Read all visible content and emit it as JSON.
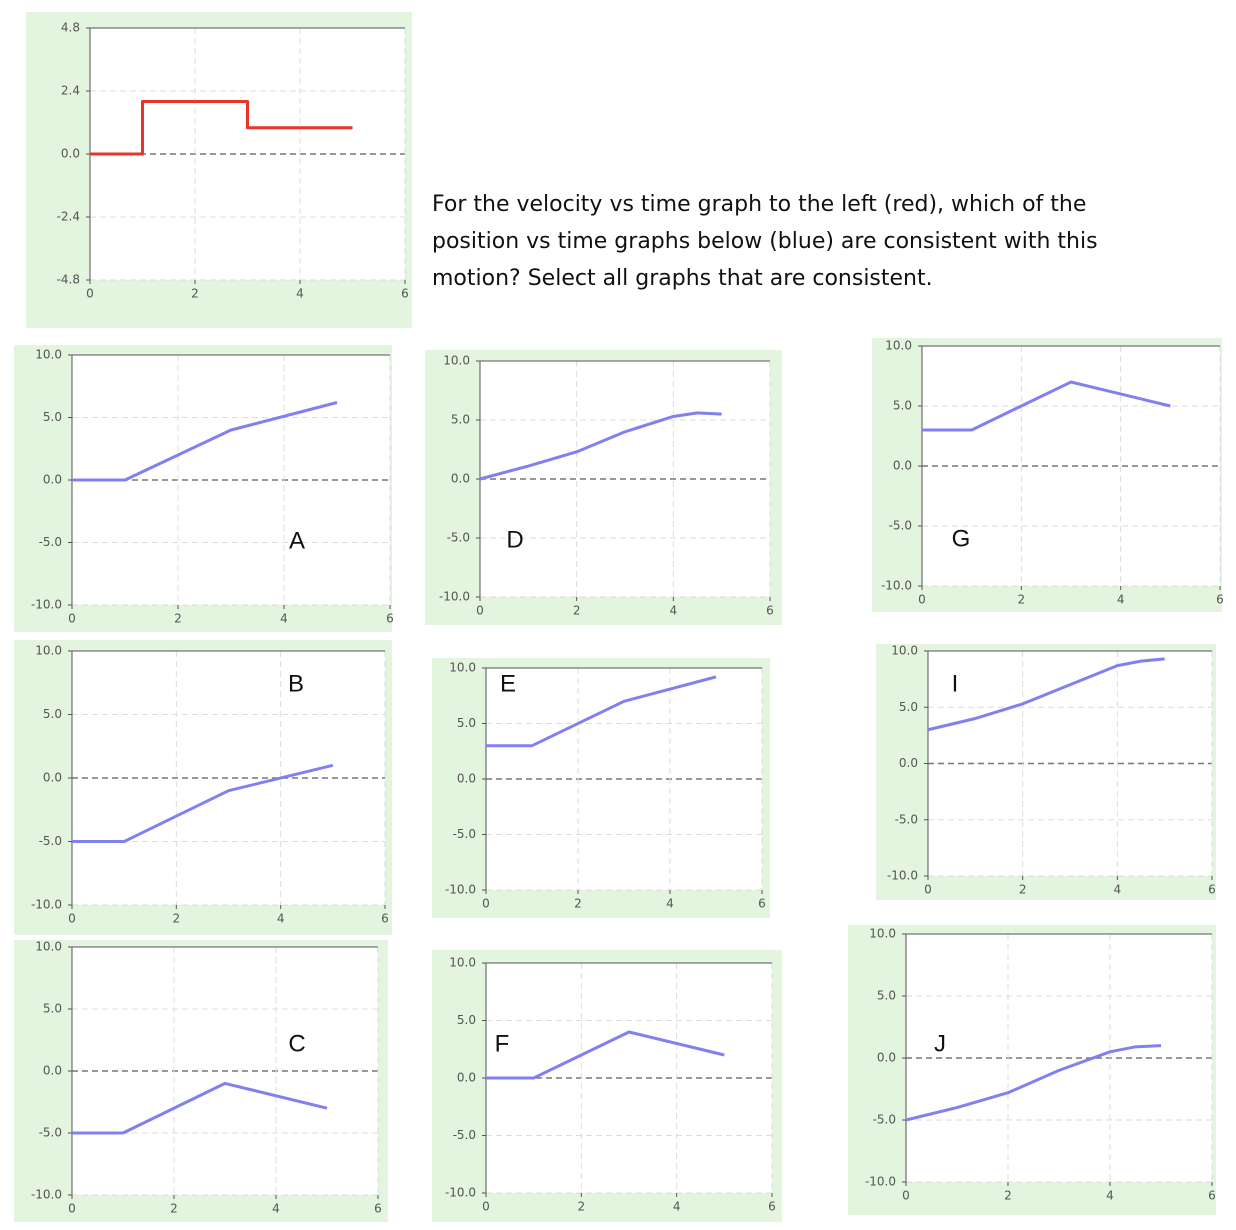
{
  "question": "For the velocity vs time graph to the left (red), which of the position vs time graphs below (blue) are consistent with this motion? Select all graphs that are consistent.",
  "chart_data": [
    {
      "type": "line",
      "color": "#e8342a",
      "x": [
        0,
        1,
        1,
        3,
        3,
        5
      ],
      "values": [
        0,
        0,
        2,
        2,
        1,
        1
      ],
      "xlim": [
        0,
        6
      ],
      "xticks": [
        0,
        2,
        4,
        6
      ],
      "ylim": [
        -4.8,
        4.8
      ],
      "yticks": [
        -4.8,
        -2.4,
        {
          "value": 0,
          "label": "0.0"
        },
        2.4,
        4.8
      ],
      "grid": true
    },
    {
      "type": "line",
      "label": "A",
      "color": "#8080f0",
      "x": [
        0,
        1,
        3,
        5
      ],
      "values": [
        0,
        0,
        4,
        6.2
      ],
      "xlim": [
        0,
        6
      ],
      "xticks": [
        0,
        2,
        4,
        6
      ],
      "ylim": [
        -10,
        10
      ],
      "yticks": [
        {
          "value": -10,
          "label": "-10.0"
        },
        {
          "value": -5,
          "label": "-5.0"
        },
        {
          "value": 0,
          "label": "0.0"
        },
        {
          "value": 5,
          "label": "5.0"
        },
        {
          "value": 10,
          "label": "10.0"
        }
      ],
      "grid": true
    },
    {
      "type": "line",
      "label": "D",
      "color": "#8080f0",
      "x": [
        0,
        1,
        2,
        3,
        4,
        4.5,
        5
      ],
      "values": [
        0,
        1.1,
        2.3,
        4,
        5.3,
        5.6,
        5.5
      ],
      "xlim": [
        0,
        6
      ],
      "xticks": [
        0,
        2,
        4,
        6
      ],
      "ylim": [
        -10,
        10
      ],
      "yticks": [
        {
          "value": -10,
          "label": "-10.0"
        },
        {
          "value": -5,
          "label": "-5.0"
        },
        {
          "value": 0,
          "label": "0.0"
        },
        {
          "value": 5,
          "label": "5.0"
        },
        {
          "value": 10,
          "label": "10.0"
        }
      ],
      "grid": true
    },
    {
      "type": "line",
      "label": "G",
      "color": "#8080f0",
      "x": [
        0,
        1,
        3,
        5
      ],
      "values": [
        3,
        3,
        7,
        5
      ],
      "xlim": [
        0,
        6
      ],
      "xticks": [
        0,
        2,
        4,
        6
      ],
      "ylim": [
        -10,
        10
      ],
      "yticks": [
        {
          "value": -10,
          "label": "-10.0"
        },
        {
          "value": -5,
          "label": "-5.0"
        },
        {
          "value": 0,
          "label": "0.0"
        },
        {
          "value": 5,
          "label": "5.0"
        },
        {
          "value": 10,
          "label": "10.0"
        }
      ],
      "grid": true
    },
    {
      "type": "line",
      "label": "B",
      "color": "#8080f0",
      "x": [
        0,
        1,
        3,
        5
      ],
      "values": [
        -5,
        -5,
        -1,
        1
      ],
      "xlim": [
        0,
        6
      ],
      "xticks": [
        0,
        2,
        4,
        6
      ],
      "ylim": [
        -10,
        10
      ],
      "yticks": [
        {
          "value": -10,
          "label": "-10.0"
        },
        {
          "value": -5,
          "label": "-5.0"
        },
        {
          "value": 0,
          "label": "0.0"
        },
        {
          "value": 5,
          "label": "5.0"
        },
        {
          "value": 10,
          "label": "10.0"
        }
      ],
      "grid": true
    },
    {
      "type": "line",
      "label": "E",
      "color": "#8080f0",
      "x": [
        0,
        1,
        3,
        5
      ],
      "values": [
        3,
        3,
        7,
        9.2
      ],
      "xlim": [
        0,
        6
      ],
      "xticks": [
        0,
        2,
        4,
        6
      ],
      "ylim": [
        -10,
        10
      ],
      "yticks": [
        {
          "value": -10,
          "label": "-10.0"
        },
        {
          "value": -5,
          "label": "-5.0"
        },
        {
          "value": 0,
          "label": "0.0"
        },
        {
          "value": 5,
          "label": "5.0"
        },
        {
          "value": 10,
          "label": "10.0"
        }
      ],
      "grid": true
    },
    {
      "type": "line",
      "label": "I",
      "color": "#8080f0",
      "x": [
        0,
        1,
        2,
        3,
        4,
        4.5,
        5
      ],
      "values": [
        3,
        4,
        5.3,
        7,
        8.7,
        9.1,
        9.3
      ],
      "xlim": [
        0,
        6
      ],
      "xticks": [
        0,
        2,
        4,
        6
      ],
      "ylim": [
        -10,
        10
      ],
      "yticks": [
        {
          "value": -10,
          "label": "-10.0"
        },
        {
          "value": -5,
          "label": "-5.0"
        },
        {
          "value": 0,
          "label": "0.0"
        },
        {
          "value": 5,
          "label": "5.0"
        },
        {
          "value": 10,
          "label": "10.0"
        }
      ],
      "grid": true
    },
    {
      "type": "line",
      "label": "C",
      "color": "#8080f0",
      "x": [
        0,
        1,
        3,
        5
      ],
      "values": [
        -5,
        -5,
        -1,
        -3
      ],
      "xlim": [
        0,
        6
      ],
      "xticks": [
        0,
        2,
        4,
        6
      ],
      "ylim": [
        -10,
        10
      ],
      "yticks": [
        {
          "value": -10,
          "label": "-10.0"
        },
        {
          "value": -5,
          "label": "-5.0"
        },
        {
          "value": 0,
          "label": "0.0"
        },
        {
          "value": 5,
          "label": "5.0"
        },
        {
          "value": 10,
          "label": "10.0"
        }
      ],
      "grid": true
    },
    {
      "type": "line",
      "label": "F",
      "color": "#8080f0",
      "x": [
        0,
        1,
        3,
        5
      ],
      "values": [
        0,
        0,
        4,
        2
      ],
      "xlim": [
        0,
        6
      ],
      "xticks": [
        0,
        2,
        4,
        6
      ],
      "ylim": [
        -10,
        10
      ],
      "yticks": [
        {
          "value": -10,
          "label": "-10.0"
        },
        {
          "value": -5,
          "label": "-5.0"
        },
        {
          "value": 0,
          "label": "0.0"
        },
        {
          "value": 5,
          "label": "5.0"
        },
        {
          "value": 10,
          "label": "10.0"
        }
      ],
      "grid": true
    },
    {
      "type": "line",
      "label": "J",
      "color": "#8080f0",
      "x": [
        0,
        1,
        2,
        3,
        4,
        4.5,
        5
      ],
      "values": [
        -5,
        -4,
        -2.8,
        -1,
        0.5,
        0.9,
        1
      ],
      "xlim": [
        0,
        6
      ],
      "xticks": [
        0,
        2,
        4,
        6
      ],
      "ylim": [
        -10,
        10
      ],
      "yticks": [
        {
          "value": -10,
          "label": "-10.0"
        },
        {
          "value": -5,
          "label": "-5.0"
        },
        {
          "value": 0,
          "label": "0.0"
        },
        {
          "value": 5,
          "label": "5.0"
        },
        {
          "value": 10,
          "label": "10.0"
        }
      ],
      "grid": true
    }
  ]
}
